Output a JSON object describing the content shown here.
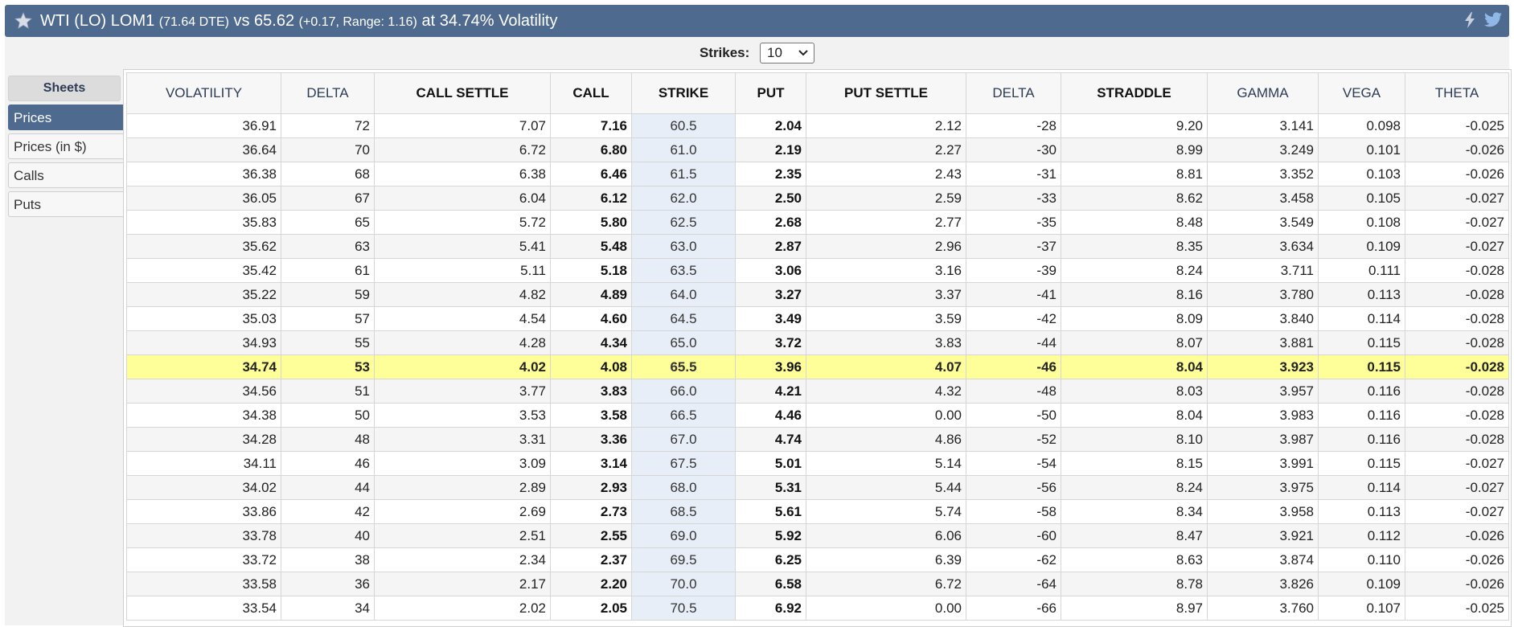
{
  "header": {
    "title_main": "WTI (LO) LOM1",
    "title_dte": "(71.64 DTE)",
    "title_vs": "vs 65.62",
    "title_change": "(+0.17,  Range: 1.16)",
    "title_vol": "at 34.74% Volatility",
    "icons": [
      "star-icon",
      "flash-icon",
      "twitter-icon"
    ]
  },
  "strikes": {
    "label": "Strikes:",
    "value": "10"
  },
  "sidebar": {
    "heading": "Sheets",
    "items": [
      {
        "label": "Prices",
        "active": true
      },
      {
        "label": "Prices (in $)",
        "active": false
      },
      {
        "label": "Calls",
        "active": false
      },
      {
        "label": "Puts",
        "active": false
      }
    ]
  },
  "table": {
    "headers": [
      "VOLATILITY",
      "DELTA",
      "CALL SETTLE",
      "CALL",
      "STRIKE",
      "PUT",
      "PUT SETTLE",
      "DELTA",
      "STRADDLE",
      "GAMMA",
      "VEGA",
      "THETA"
    ],
    "rows": [
      [
        "36.91",
        "72",
        "7.07",
        "7.16",
        "60.5",
        "2.04",
        "2.12",
        "-28",
        "9.20",
        "3.141",
        "0.098",
        "-0.025"
      ],
      [
        "36.64",
        "70",
        "6.72",
        "6.80",
        "61.0",
        "2.19",
        "2.27",
        "-30",
        "8.99",
        "3.249",
        "0.101",
        "-0.026"
      ],
      [
        "36.38",
        "68",
        "6.38",
        "6.46",
        "61.5",
        "2.35",
        "2.43",
        "-31",
        "8.81",
        "3.352",
        "0.103",
        "-0.026"
      ],
      [
        "36.05",
        "67",
        "6.04",
        "6.12",
        "62.0",
        "2.50",
        "2.59",
        "-33",
        "8.62",
        "3.458",
        "0.105",
        "-0.027"
      ],
      [
        "35.83",
        "65",
        "5.72",
        "5.80",
        "62.5",
        "2.68",
        "2.77",
        "-35",
        "8.48",
        "3.549",
        "0.108",
        "-0.027"
      ],
      [
        "35.62",
        "63",
        "5.41",
        "5.48",
        "63.0",
        "2.87",
        "2.96",
        "-37",
        "8.35",
        "3.634",
        "0.109",
        "-0.027"
      ],
      [
        "35.42",
        "61",
        "5.11",
        "5.18",
        "63.5",
        "3.06",
        "3.16",
        "-39",
        "8.24",
        "3.711",
        "0.111",
        "-0.028"
      ],
      [
        "35.22",
        "59",
        "4.82",
        "4.89",
        "64.0",
        "3.27",
        "3.37",
        "-41",
        "8.16",
        "3.780",
        "0.113",
        "-0.028"
      ],
      [
        "35.03",
        "57",
        "4.54",
        "4.60",
        "64.5",
        "3.49",
        "3.59",
        "-42",
        "8.09",
        "3.840",
        "0.114",
        "-0.028"
      ],
      [
        "34.93",
        "55",
        "4.28",
        "4.34",
        "65.0",
        "3.72",
        "3.83",
        "-44",
        "8.07",
        "3.881",
        "0.115",
        "-0.028"
      ],
      [
        "34.74",
        "53",
        "4.02",
        "4.08",
        "65.5",
        "3.96",
        "4.07",
        "-46",
        "8.04",
        "3.923",
        "0.115",
        "-0.028"
      ],
      [
        "34.56",
        "51",
        "3.77",
        "3.83",
        "66.0",
        "4.21",
        "4.32",
        "-48",
        "8.03",
        "3.957",
        "0.116",
        "-0.028"
      ],
      [
        "34.38",
        "50",
        "3.53",
        "3.58",
        "66.5",
        "4.46",
        "0.00",
        "-50",
        "8.04",
        "3.983",
        "0.116",
        "-0.028"
      ],
      [
        "34.28",
        "48",
        "3.31",
        "3.36",
        "67.0",
        "4.74",
        "4.86",
        "-52",
        "8.10",
        "3.987",
        "0.116",
        "-0.028"
      ],
      [
        "34.11",
        "46",
        "3.09",
        "3.14",
        "67.5",
        "5.01",
        "5.14",
        "-54",
        "8.15",
        "3.991",
        "0.115",
        "-0.027"
      ],
      [
        "34.02",
        "44",
        "2.89",
        "2.93",
        "68.0",
        "5.31",
        "5.44",
        "-56",
        "8.24",
        "3.975",
        "0.114",
        "-0.027"
      ],
      [
        "33.86",
        "42",
        "2.69",
        "2.73",
        "68.5",
        "5.61",
        "5.74",
        "-58",
        "8.34",
        "3.958",
        "0.113",
        "-0.027"
      ],
      [
        "33.78",
        "40",
        "2.51",
        "2.55",
        "69.0",
        "5.92",
        "6.06",
        "-60",
        "8.47",
        "3.921",
        "0.112",
        "-0.026"
      ],
      [
        "33.72",
        "38",
        "2.34",
        "2.37",
        "69.5",
        "6.25",
        "6.39",
        "-62",
        "8.63",
        "3.874",
        "0.110",
        "-0.026"
      ],
      [
        "33.58",
        "36",
        "2.17",
        "2.20",
        "70.0",
        "6.58",
        "6.72",
        "-64",
        "8.78",
        "3.826",
        "0.109",
        "-0.026"
      ],
      [
        "33.54",
        "34",
        "2.02",
        "2.05",
        "70.5",
        "6.92",
        "0.00",
        "-66",
        "8.97",
        "3.760",
        "0.107",
        "-0.025"
      ]
    ],
    "atm_row_index": 10
  },
  "colors": {
    "titlebar": "#4e6a8e",
    "atm_highlight": "#ffff99",
    "strike_column": "#e8eef7"
  }
}
